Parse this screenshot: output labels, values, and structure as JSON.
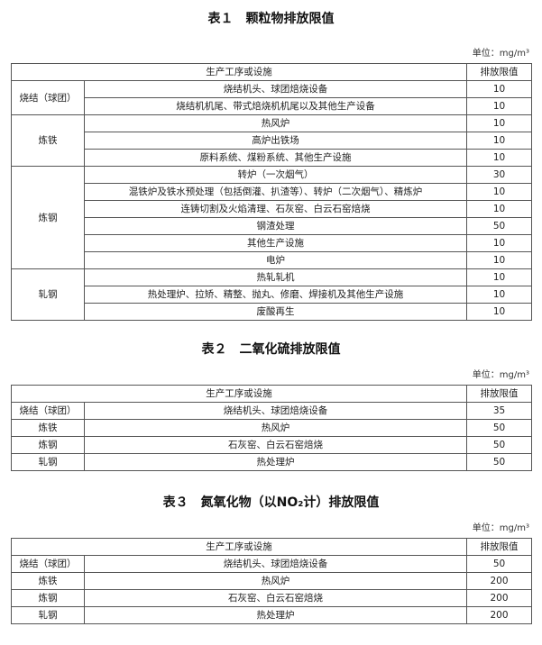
{
  "tables": [
    {
      "title": "表１　颗粒物排放限值",
      "unit": "单位：mg/m³",
      "header": {
        "process": "生产工序或设施",
        "limit": "排放限值"
      },
      "groups": [
        {
          "name": "烧结（球团）",
          "rows": [
            [
              "烧结机头、球团焙烧设备",
              "10"
            ],
            [
              "烧结机机尾、带式焙烧机机尾以及其他生产设备",
              "10"
            ]
          ]
        },
        {
          "name": "炼铁",
          "rows": [
            [
              "热风炉",
              "10"
            ],
            [
              "高炉出铁场",
              "10"
            ],
            [
              "原料系统、煤粉系统、其他生产设施",
              "10"
            ]
          ]
        },
        {
          "name": "炼钢",
          "rows": [
            [
              "转炉（一次烟气）",
              "30"
            ],
            [
              "混铁炉及铁水预处理（包括倒灌、扒渣等）、转炉（二次烟气）、精炼炉",
              "10"
            ],
            [
              "连铸切割及火焰清理、石灰窑、白云石窑焙烧",
              "10"
            ],
            [
              "钢渣处理",
              "50"
            ],
            [
              "其他生产设施",
              "10"
            ],
            [
              "电炉",
              "10"
            ]
          ]
        },
        {
          "name": "轧钢",
          "rows": [
            [
              "热轧轧机",
              "10"
            ],
            [
              "热处理炉、拉矫、精整、抛丸、修磨、焊接机及其他生产设施",
              "10"
            ],
            [
              "废酸再生",
              "10"
            ]
          ]
        }
      ]
    },
    {
      "title": "表２　二氧化硫排放限值",
      "unit": "单位：mg/m³",
      "header": {
        "process": "生产工序或设施",
        "limit": "排放限值"
      },
      "groups": [
        {
          "name": "烧结（球团）",
          "rows": [
            [
              "烧结机头、球团焙烧设备",
              "35"
            ]
          ]
        },
        {
          "name": "炼铁",
          "rows": [
            [
              "热风炉",
              "50"
            ]
          ]
        },
        {
          "name": "炼钢",
          "rows": [
            [
              "石灰窑、白云石窑焙烧",
              "50"
            ]
          ]
        },
        {
          "name": "轧钢",
          "rows": [
            [
              "热处理炉",
              "50"
            ]
          ]
        }
      ]
    },
    {
      "title": "表３　氮氧化物（以NO₂计）排放限值",
      "unit": "单位：mg/m³",
      "header": {
        "process": "生产工序或设施",
        "limit": "排放限值"
      },
      "groups": [
        {
          "name": "烧结（球团）",
          "rows": [
            [
              "烧结机头、球团焙烧设备",
              "50"
            ]
          ]
        },
        {
          "name": "炼铁",
          "rows": [
            [
              "热风炉",
              "200"
            ]
          ]
        },
        {
          "name": "炼钢",
          "rows": [
            [
              "石灰窑、白云石窑焙烧",
              "200"
            ]
          ]
        },
        {
          "name": "轧钢",
          "rows": [
            [
              "热处理炉",
              "200"
            ]
          ]
        }
      ]
    }
  ]
}
